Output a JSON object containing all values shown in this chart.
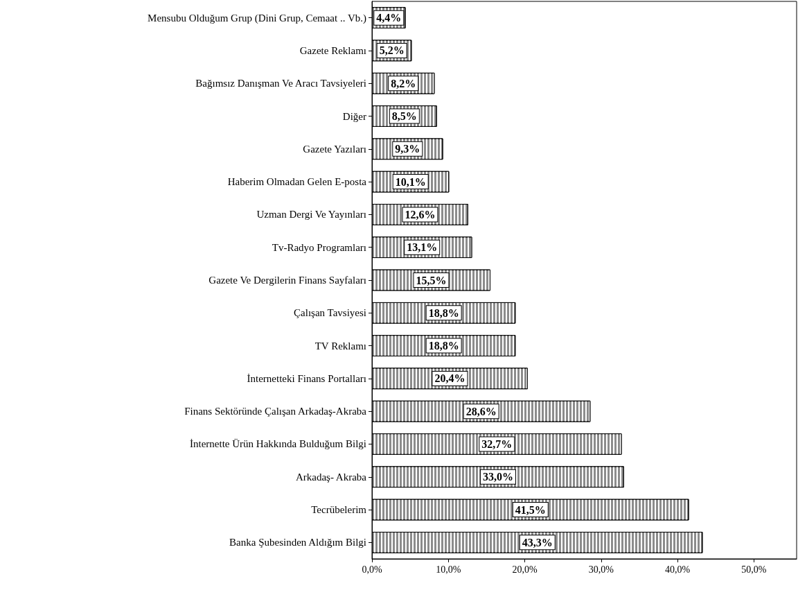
{
  "chart_data": {
    "type": "bar",
    "orientation": "horizontal",
    "categories": [
      "Mensubu Olduğum Grup (Dini Grup, Cemaat .. Vb.)",
      "Gazete Reklamı",
      "Bağımsız Danışman Ve Aracı Tavsiyeleri",
      "Diğer",
      "Gazete Yazıları",
      "Haberim Olmadan Gelen E-posta",
      "Uzman Dergi Ve Yayınları",
      "Tv-Radyo Programları",
      "Gazete Ve Dergilerin Finans Sayfaları",
      "Çalışan Tavsiyesi",
      "TV Reklamı",
      "İnternetteki Finans Portalları",
      "Finans Sektöründe Çalışan Arkadaş-Akraba",
      "İnternette Ürün Hakkında Bulduğum Bilgi",
      "Arkadaş- Akraba",
      "Tecrübelerim",
      "Banka Şubesinden Aldığım Bilgi"
    ],
    "values": [
      4.4,
      5.2,
      8.2,
      8.5,
      9.3,
      10.1,
      12.6,
      13.1,
      15.5,
      18.8,
      18.8,
      20.4,
      28.6,
      32.7,
      33.0,
      41.5,
      43.3
    ],
    "value_labels": [
      "4,4%",
      "5,2%",
      "8,2%",
      "8,5%",
      "9,3%",
      "10,1%",
      "12,6%",
      "13,1%",
      "15,5%",
      "18,8%",
      "18,8%",
      "20,4%",
      "28,6%",
      "32,7%",
      "33,0%",
      "41,5%",
      "43,3%"
    ],
    "color": "#8c8c8c",
    "xlim": [
      0,
      55.6
    ],
    "xticks": [
      {
        "value": 0,
        "label": "0,0%"
      },
      {
        "value": 10,
        "label": "10,0%"
      },
      {
        "value": 20,
        "label": "20,0%"
      },
      {
        "value": 30,
        "label": "30,0%"
      },
      {
        "value": 40,
        "label": "40,0%"
      },
      {
        "value": 50,
        "label": "50,0%"
      }
    ],
    "grid": false
  }
}
